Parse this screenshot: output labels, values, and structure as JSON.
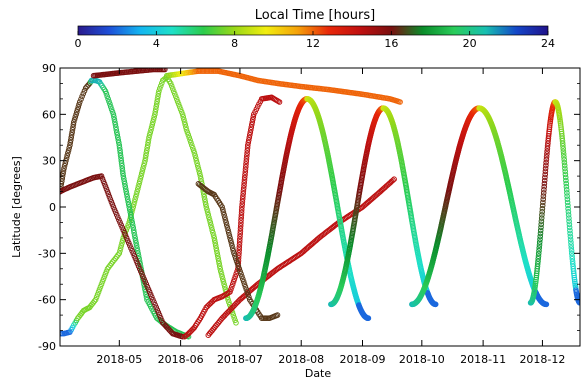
{
  "chart_data": {
    "type": "scatter",
    "title": "",
    "xlabel": "Date",
    "ylabel": "Latitude [degrees]",
    "xlim": [
      "2018-04-01",
      "2018-12-20"
    ],
    "ylim": [
      -90,
      90
    ],
    "y_ticks": [
      -90,
      -60,
      -30,
      0,
      30,
      60,
      90
    ],
    "y_tick_labels": [
      "-90",
      "-60",
      "-30",
      "0",
      "30",
      "60",
      "90"
    ],
    "x_ticks": [
      "2018-05-01",
      "2018-06-01",
      "2018-07-01",
      "2018-08-01",
      "2018-09-01",
      "2018-10-01",
      "2018-11-01",
      "2018-12-01"
    ],
    "x_tick_labels": [
      "2018-05",
      "2018-06",
      "2018-07",
      "2018-08",
      "2018-09",
      "2018-10",
      "2018-11",
      "2018-12"
    ],
    "grid": false,
    "marker": "open-circle",
    "color_by": "local_time",
    "colorbar": {
      "title": "Local Time [hours]",
      "range": [
        0,
        24
      ],
      "ticks": [
        0,
        4,
        8,
        12,
        16,
        20,
        24
      ],
      "tick_labels": [
        "0",
        "4",
        "8",
        "12",
        "16",
        "20",
        "24"
      ],
      "placement": "top",
      "colors": [
        "#2a1a8c",
        "#1e4fd8",
        "#14b6f0",
        "#1ee0c8",
        "#2ccc4c",
        "#9ad818",
        "#f2ee10",
        "#f5a20a",
        "#e8280a",
        "#c01010",
        "#7a1010",
        "#0a8c2a",
        "#2acc5a",
        "#18c0b0",
        "#1446c8",
        "#20128a"
      ]
    },
    "series": [
      {
        "points": [
          [
            "2018-04-01",
            -82,
            2.0
          ],
          [
            "2018-04-03",
            -82,
            2.0
          ],
          [
            "2018-04-06",
            -81,
            2.0
          ],
          [
            "2018-04-10",
            -72,
            7.5
          ],
          [
            "2018-04-13",
            -67,
            7.5
          ],
          [
            "2018-04-16",
            -65,
            7.5
          ],
          [
            "2018-04-19",
            -60,
            7.5
          ],
          [
            "2018-04-22",
            -50,
            7.5
          ],
          [
            "2018-04-25",
            -40,
            7.5
          ],
          [
            "2018-05-01",
            -30,
            7.5
          ],
          [
            "2018-05-03",
            -20,
            7.5
          ],
          [
            "2018-05-06",
            -10,
            7.5
          ],
          [
            "2018-05-08",
            0,
            7.5
          ],
          [
            "2018-05-11",
            15,
            7.5
          ],
          [
            "2018-05-14",
            30,
            7.5
          ],
          [
            "2018-05-16",
            45,
            7.5
          ],
          [
            "2018-05-19",
            60,
            7.5
          ],
          [
            "2018-05-21",
            75,
            7.5
          ],
          [
            "2018-05-23",
            82,
            7.5
          ],
          [
            "2018-05-25",
            84,
            7.5
          ],
          [
            "2018-05-27",
            80,
            7.5
          ],
          [
            "2018-05-30",
            70,
            7.5
          ],
          [
            "2018-06-02",
            60,
            7.5
          ],
          [
            "2018-06-04",
            50,
            7.5
          ],
          [
            "2018-06-08",
            35,
            7.5
          ],
          [
            "2018-06-11",
            20,
            7.5
          ],
          [
            "2018-06-14",
            0,
            7.5
          ],
          [
            "2018-06-18",
            -20,
            7.5
          ],
          [
            "2018-06-21",
            -40,
            7.5
          ],
          [
            "2018-06-25",
            -60,
            7.5
          ],
          [
            "2018-06-29",
            -75,
            7.5
          ]
        ]
      },
      {
        "points": [
          [
            "2018-04-01",
            10,
            16.5
          ],
          [
            "2018-04-03",
            25,
            16.5
          ],
          [
            "2018-04-06",
            40,
            16.5
          ],
          [
            "2018-04-08",
            55,
            16.5
          ],
          [
            "2018-04-11",
            68,
            16.5
          ],
          [
            "2018-04-14",
            77,
            16.5
          ],
          [
            "2018-04-16",
            80,
            16.5
          ],
          [
            "2018-04-17",
            82,
            21.0
          ],
          [
            "2018-04-19",
            82,
            21.0
          ],
          [
            "2018-04-21",
            81,
            21.0
          ],
          [
            "2018-04-24",
            75,
            19.0
          ],
          [
            "2018-04-28",
            60,
            19.0
          ],
          [
            "2018-05-01",
            40,
            19.0
          ],
          [
            "2018-05-03",
            20,
            19.0
          ],
          [
            "2018-05-06",
            0,
            19.0
          ],
          [
            "2018-05-09",
            -20,
            19.0
          ],
          [
            "2018-05-12",
            -40,
            19.0
          ],
          [
            "2018-05-15",
            -60,
            19.0
          ],
          [
            "2018-05-20",
            -72,
            19.0
          ],
          [
            "2018-05-25",
            -77,
            19.0
          ],
          [
            "2018-05-30",
            -81,
            19.0
          ],
          [
            "2018-06-05",
            -84,
            19.0
          ]
        ]
      },
      {
        "points": [
          [
            "2018-04-01",
            10,
            16.0
          ],
          [
            "2018-04-06",
            13,
            16.0
          ],
          [
            "2018-04-12",
            16,
            16.0
          ],
          [
            "2018-04-18",
            19,
            16.0
          ],
          [
            "2018-04-22",
            20,
            16.0
          ],
          [
            "2018-04-28",
            0,
            16.0
          ],
          [
            "2018-05-03",
            -15,
            16.0
          ],
          [
            "2018-05-08",
            -30,
            16.0
          ],
          [
            "2018-05-13",
            -45,
            16.0
          ],
          [
            "2018-05-18",
            -60,
            16.0
          ],
          [
            "2018-05-23",
            -75,
            16.0
          ],
          [
            "2018-05-28",
            -82,
            16.0
          ],
          [
            "2018-06-02",
            -84,
            16.0
          ]
        ]
      },
      {
        "points": [
          [
            "2018-04-18",
            85,
            16.0
          ],
          [
            "2018-04-25",
            86,
            16.0
          ],
          [
            "2018-05-02",
            87,
            16.0
          ],
          [
            "2018-05-10",
            88,
            16.0
          ],
          [
            "2018-05-18",
            89,
            16.0
          ],
          [
            "2018-05-24",
            89,
            16.0
          ]
        ]
      },
      {
        "points": [
          [
            "2018-05-25",
            85,
            7.5
          ],
          [
            "2018-06-10",
            88,
            12.0
          ],
          [
            "2018-06-20",
            88,
            12.0
          ],
          [
            "2018-07-01",
            85,
            12.0
          ],
          [
            "2018-07-10",
            82,
            12.0
          ],
          [
            "2018-07-20",
            80,
            12.0
          ],
          [
            "2018-08-01",
            78,
            12.0
          ],
          [
            "2018-08-15",
            76,
            12.0
          ],
          [
            "2018-09-01",
            73,
            12.0
          ],
          [
            "2018-09-15",
            70,
            12.0
          ],
          [
            "2018-09-20",
            68,
            12.0
          ]
        ]
      },
      {
        "points": [
          [
            "2018-06-15",
            -83,
            14.5
          ],
          [
            "2018-06-22",
            -72,
            14.5
          ],
          [
            "2018-07-01",
            -60,
            14.5
          ],
          [
            "2018-07-10",
            -50,
            14.5
          ],
          [
            "2018-07-20",
            -40,
            14.5
          ],
          [
            "2018-08-01",
            -30,
            14.5
          ],
          [
            "2018-08-10",
            -20,
            14.5
          ],
          [
            "2018-08-20",
            -10,
            14.5
          ],
          [
            "2018-09-01",
            0,
            14.5
          ],
          [
            "2018-09-10",
            10,
            14.5
          ],
          [
            "2018-09-17",
            18,
            14.5
          ]
        ]
      },
      {
        "points": [
          [
            "2018-06-03",
            -84,
            14.5
          ],
          [
            "2018-06-05",
            -82,
            14.5
          ],
          [
            "2018-06-08",
            -78,
            14.5
          ],
          [
            "2018-06-11",
            -72,
            14.5
          ],
          [
            "2018-06-14",
            -65,
            14.5
          ],
          [
            "2018-06-18",
            -60,
            14.5
          ],
          [
            "2018-06-22",
            -58,
            14.5
          ],
          [
            "2018-06-26",
            -55,
            14.5
          ],
          [
            "2018-06-30",
            -40,
            14.5
          ],
          [
            "2018-07-02",
            0,
            14.5
          ],
          [
            "2018-07-05",
            40,
            14.5
          ],
          [
            "2018-07-08",
            60,
            14.5
          ],
          [
            "2018-07-12",
            70,
            14.5
          ],
          [
            "2018-07-17",
            71,
            14.5
          ],
          [
            "2018-07-21",
            68,
            14.5
          ]
        ]
      },
      {
        "points": [
          [
            "2018-06-10",
            15,
            16.5
          ],
          [
            "2018-06-15",
            10,
            16.5
          ],
          [
            "2018-06-18",
            8,
            16.5
          ],
          [
            "2018-06-22",
            0,
            16.5
          ],
          [
            "2018-06-26",
            -20,
            16.5
          ],
          [
            "2018-06-28",
            -30,
            16.5
          ],
          [
            "2018-07-02",
            -45,
            16.5
          ],
          [
            "2018-07-06",
            -60,
            16.5
          ],
          [
            "2018-07-12",
            -72,
            16.5
          ],
          [
            "2018-07-16",
            -72,
            16.5
          ],
          [
            "2018-07-20",
            -70,
            16.5
          ]
        ]
      }
    ],
    "visible_lobes": [
      {
        "x_start": "2018-07-04",
        "x_end": "2018-09-04",
        "y_top": 70,
        "y_bottom": -72,
        "pass_value": -72
      },
      {
        "x_start": "2018-08-16",
        "x_end": "2018-10-08",
        "y_top": 64,
        "y_bottom": -63,
        "pass_value": -63
      },
      {
        "x_start": "2018-09-26",
        "x_end": "2018-12-03",
        "y_top": 64,
        "y_bottom": -63,
        "pass_value": -63
      },
      {
        "x_start": "2018-11-25",
        "x_end": "2018-12-20",
        "y_top": 68,
        "y_bottom": -62,
        "pass_value": -62
      }
    ]
  }
}
